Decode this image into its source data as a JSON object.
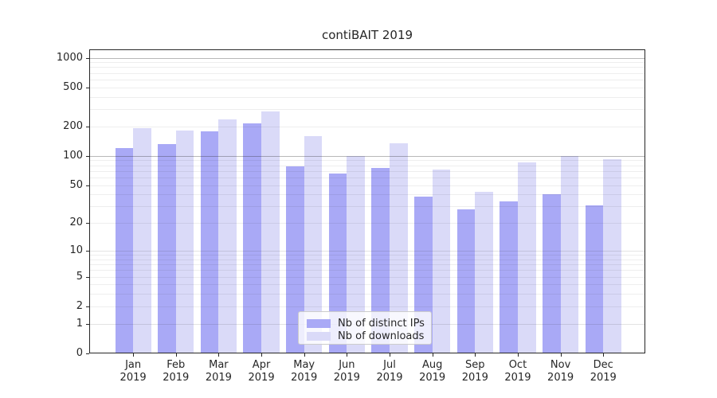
{
  "chart_data": {
    "type": "bar",
    "title": "contiBAIT 2019",
    "x_categories": [
      "Jan",
      "Feb",
      "Mar",
      "Apr",
      "May",
      "Jun",
      "Jul",
      "Aug",
      "Sep",
      "Oct",
      "Nov",
      "Dec"
    ],
    "x_year": "2019",
    "series": [
      {
        "name": "Nb of distinct IPs",
        "key": "distinct-ips",
        "color": "#a9a9f6",
        "values": [
          121,
          133,
          177,
          213,
          78,
          66,
          75,
          38,
          28,
          34,
          40,
          31
        ]
      },
      {
        "name": "Nb of downloads",
        "key": "downloads",
        "color": "#dadaf8",
        "values": [
          191,
          182,
          236,
          283,
          158,
          100,
          135,
          72,
          43,
          86,
          100,
          92
        ]
      }
    ],
    "yscale": "log1p",
    "y_ticks": [
      0,
      1,
      2,
      5,
      10,
      20,
      50,
      100,
      200,
      500,
      1000
    ],
    "ylim": [
      0,
      1216
    ],
    "xlabel": "",
    "ylabel": "",
    "grid": "both",
    "legend_position": "lower-center"
  },
  "colors": {
    "spine": "#262626",
    "grid_major": "#b6b6b6",
    "grid_minor": "#ececec",
    "background": "#ffffff"
  }
}
